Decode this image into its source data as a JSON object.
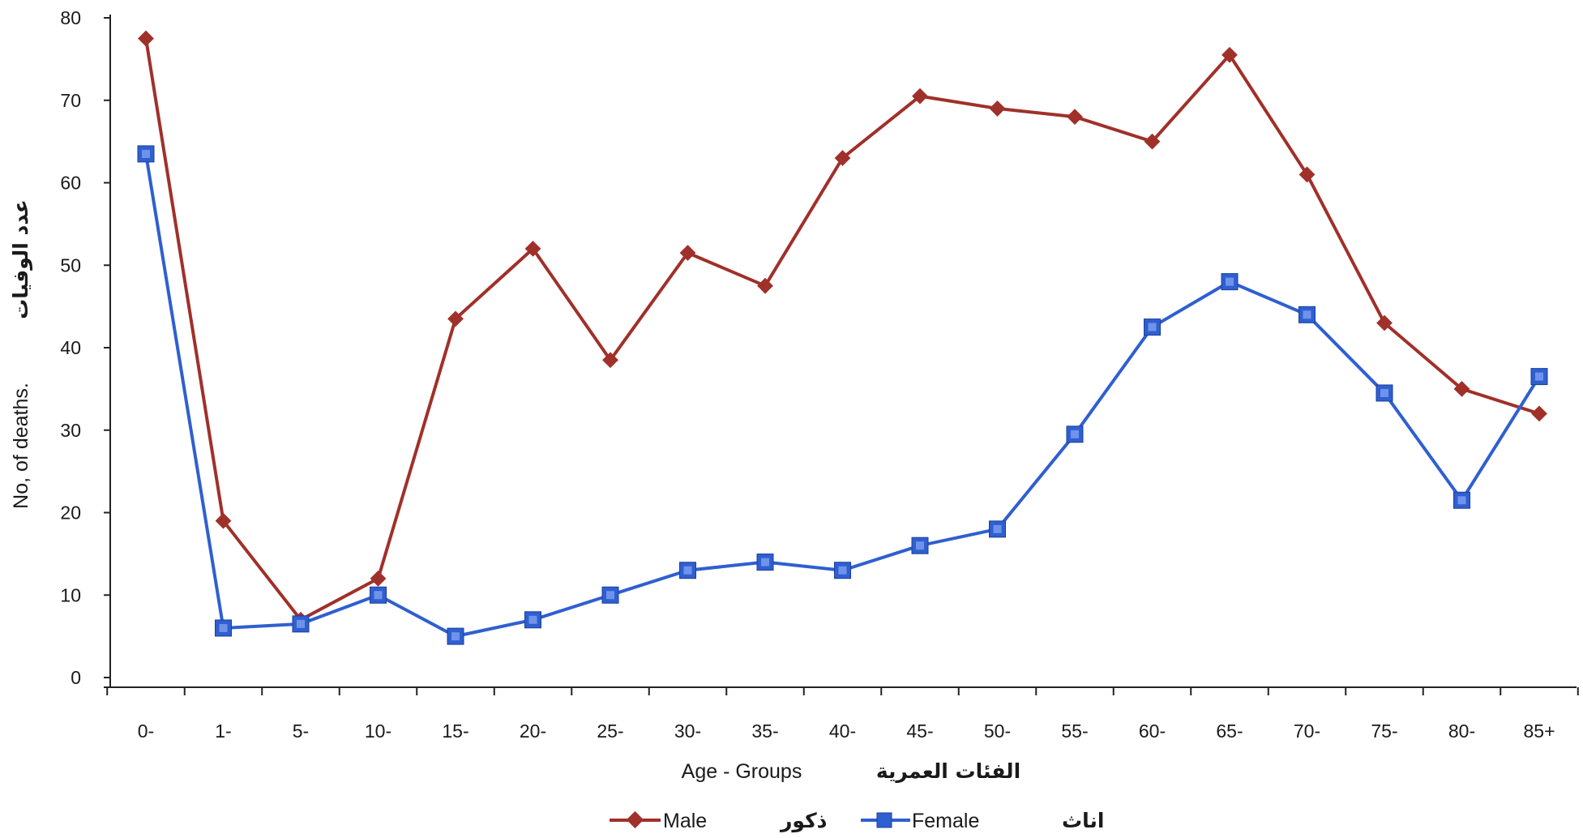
{
  "chart_data": {
    "type": "line",
    "categories": [
      "0-",
      "1-",
      "5-",
      "10-",
      "15-",
      "20-",
      "25-",
      "30-",
      "35-",
      "40-",
      "45-",
      "50-",
      "55-",
      "60-",
      "65-",
      "70-",
      "75-",
      "80-",
      "85+"
    ],
    "series": [
      {
        "name": "Male",
        "name_ar": "ذكور",
        "color": "#a0302a",
        "marker": "diamond",
        "values": [
          77.5,
          19,
          7,
          12,
          43.5,
          52,
          38.5,
          51.5,
          47.5,
          63,
          70.5,
          69,
          68,
          65,
          75.5,
          61,
          43,
          35,
          32
        ]
      },
      {
        "name": "Female",
        "name_ar": "اناث",
        "color": "#2f5fd0",
        "marker": "square",
        "values": [
          63.5,
          6,
          6.5,
          10,
          5,
          7,
          10,
          13,
          14,
          13,
          16,
          18,
          29.5,
          42.5,
          48,
          44,
          34.5,
          21.5,
          36.5
        ]
      }
    ],
    "ylim": [
      0,
      80
    ],
    "yticks": [
      0,
      10,
      20,
      30,
      40,
      50,
      60,
      70,
      80
    ],
    "xlabel": "Age - Groups",
    "xlabel_ar": "الفئات العمرية",
    "ylabel": "No, of deaths.",
    "ylabel_ar": "عدد الوفيات",
    "legend": "bottom-center",
    "grid": false
  }
}
